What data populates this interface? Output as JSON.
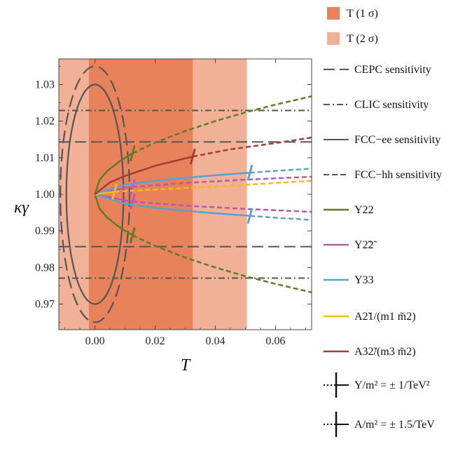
{
  "chart_data": {
    "type": "line",
    "xlabel": "T",
    "ylabel": "κγ",
    "xlim": [
      -0.012,
      0.072
    ],
    "ylim": [
      0.963,
      1.037
    ],
    "xticks": [
      "0.00",
      "0.02",
      "0.04",
      "0.06"
    ],
    "xtick_values": [
      0.0,
      0.02,
      0.04,
      0.06
    ],
    "yticks": [
      "0.97",
      "0.98",
      "0.99",
      "1.00",
      "1.01",
      "1.02",
      "1.03"
    ],
    "ytick_values": [
      0.97,
      0.98,
      0.99,
      1.0,
      1.01,
      1.02,
      1.03
    ],
    "bands": [
      {
        "name": "T (1 σ)",
        "x_range": [
          -0.002,
          0.0325
        ],
        "color": "#e8825a"
      },
      {
        "name": "T (2 σ)",
        "x_range": [
          -0.012,
          0.0505
        ],
        "color": "#f1b197"
      }
    ],
    "hlines": [
      {
        "name": "CEPC sensitivity",
        "y": [
          1.0143,
          0.9857
        ],
        "style": "dashed"
      },
      {
        "name": "CLIC sensitivity",
        "y": [
          1.0229,
          0.9771
        ],
        "style": "dashdot"
      },
      {
        "name": "FCC−ee sensitivity",
        "ellipse": {
          "center": [
            0.0,
            1.0
          ],
          "semi_x": 0.0095,
          "semi_y": 0.03
        },
        "style": "solid"
      },
      {
        "name": "FCC−hh sensitivity",
        "ellipse": {
          "center": [
            0.0,
            1.0
          ],
          "semi_x": 0.0115,
          "semi_y": 0.035
        },
        "style": "dashed"
      }
    ],
    "series": [
      {
        "name": "Y22",
        "color": "#5e7d22",
        "branches": [
          {
            "x": [
              0,
              0.0015,
              0.004,
              0.008,
              0.0125,
              0.02,
              0.03,
              0.04,
              0.05,
              0.06,
              0.072
            ],
            "y": [
              1.0,
              1.0039,
              1.0063,
              1.0089,
              1.0112,
              1.0141,
              1.0173,
              1.02,
              1.0224,
              1.0245,
              1.0268
            ]
          },
          {
            "x": [
              0,
              0.0015,
              0.004,
              0.008,
              0.0125,
              0.02,
              0.03,
              0.04,
              0.05,
              0.06,
              0.072
            ],
            "y": [
              1.0,
              0.9961,
              0.9937,
              0.9911,
              0.9888,
              0.9859,
              0.9827,
              0.98,
              0.9776,
              0.9755,
              0.9732
            ]
          }
        ],
        "tick_at_x": 0.0125,
        "solid_until_x": 0.0125
      },
      {
        "name": "Y2̃2̃",
        "color": "#b85aac",
        "branches": [
          {
            "x": [
              0,
              0.01,
              0.0125,
              0.03,
              0.05,
              0.072
            ],
            "y": [
              1.0,
              1.0017,
              1.002,
              1.0031,
              1.004,
              1.0048
            ]
          },
          {
            "x": [
              0,
              0.01,
              0.0125,
              0.03,
              0.05,
              0.072
            ],
            "y": [
              1.0,
              0.9983,
              0.998,
              0.9969,
              0.996,
              0.9952
            ]
          }
        ],
        "tick_at_x": 0.0125,
        "solid_until_x": 0.0125
      },
      {
        "name": "Y33",
        "color": "#5ba1d0",
        "branches": [
          {
            "x": [
              0,
              0.01,
              0.02,
              0.03,
              0.04,
              0.0515,
              0.06,
              0.072
            ],
            "y": [
              1.0,
              1.0026,
              1.0037,
              1.0045,
              1.0052,
              1.0059,
              1.0064,
              1.007
            ]
          },
          {
            "x": [
              0,
              0.01,
              0.02,
              0.03,
              0.04,
              0.0515,
              0.06,
              0.072
            ],
            "y": [
              1.0,
              0.9974,
              0.9963,
              0.9955,
              0.9948,
              0.9941,
              0.9936,
              0.993
            ]
          }
        ],
        "tick_at_x": 0.0515,
        "solid_until_x": 0.0515
      },
      {
        "name": "A2̃1/(m1 m̃2)",
        "color": "#f6bb16",
        "branches": [
          {
            "x": [
              0,
              0.0065,
              0.02,
              0.04,
              0.06,
              0.072
            ],
            "y": [
              1.0,
              1.0007,
              1.0013,
              1.0021,
              1.0031,
              1.0037
            ]
          }
        ],
        "tick_at_x": 0.0065,
        "solid_until_x": 0.0065
      },
      {
        "name": "A32̃/(m3 m̃2)",
        "color": "#a63a34",
        "branches": [
          {
            "x": [
              0,
              0.005,
              0.01,
              0.02,
              0.0325,
              0.045,
              0.06,
              0.072
            ],
            "y": [
              1.0,
              1.0033,
              1.005,
              1.0078,
              1.0103,
              1.0123,
              1.014,
              1.0155
            ]
          }
        ],
        "tick_at_x": 0.0325,
        "solid_until_x": 0.0325
      }
    ],
    "legend": {
      "placement": "right",
      "entries": [
        {
          "key": "band1",
          "label": "T  (1 σ)"
        },
        {
          "key": "band2",
          "label": "T  (2 σ)"
        },
        {
          "key": "cepc",
          "label": "CEPC sensitivity"
        },
        {
          "key": "clic",
          "label": "CLIC sensitivity"
        },
        {
          "key": "fccee",
          "label": "FCC−ee sensitivity"
        },
        {
          "key": "fcchh",
          "label": "FCC−hh sensitivity"
        },
        {
          "key": "y22",
          "label": "Y22"
        },
        {
          "key": "y2t2t",
          "label": "Y2̃2̃"
        },
        {
          "key": "y33",
          "label": "Y33"
        },
        {
          "key": "a21",
          "label": "A2̃1/(m1 m̃2)"
        },
        {
          "key": "a32",
          "label": "A32̃/(m3 m̃2)"
        },
        {
          "key": "ym2",
          "label": "Y/m² = ± 1/TeV²"
        },
        {
          "key": "am2",
          "label": "A/m² = ± 1.5/TeV"
        }
      ]
    }
  }
}
